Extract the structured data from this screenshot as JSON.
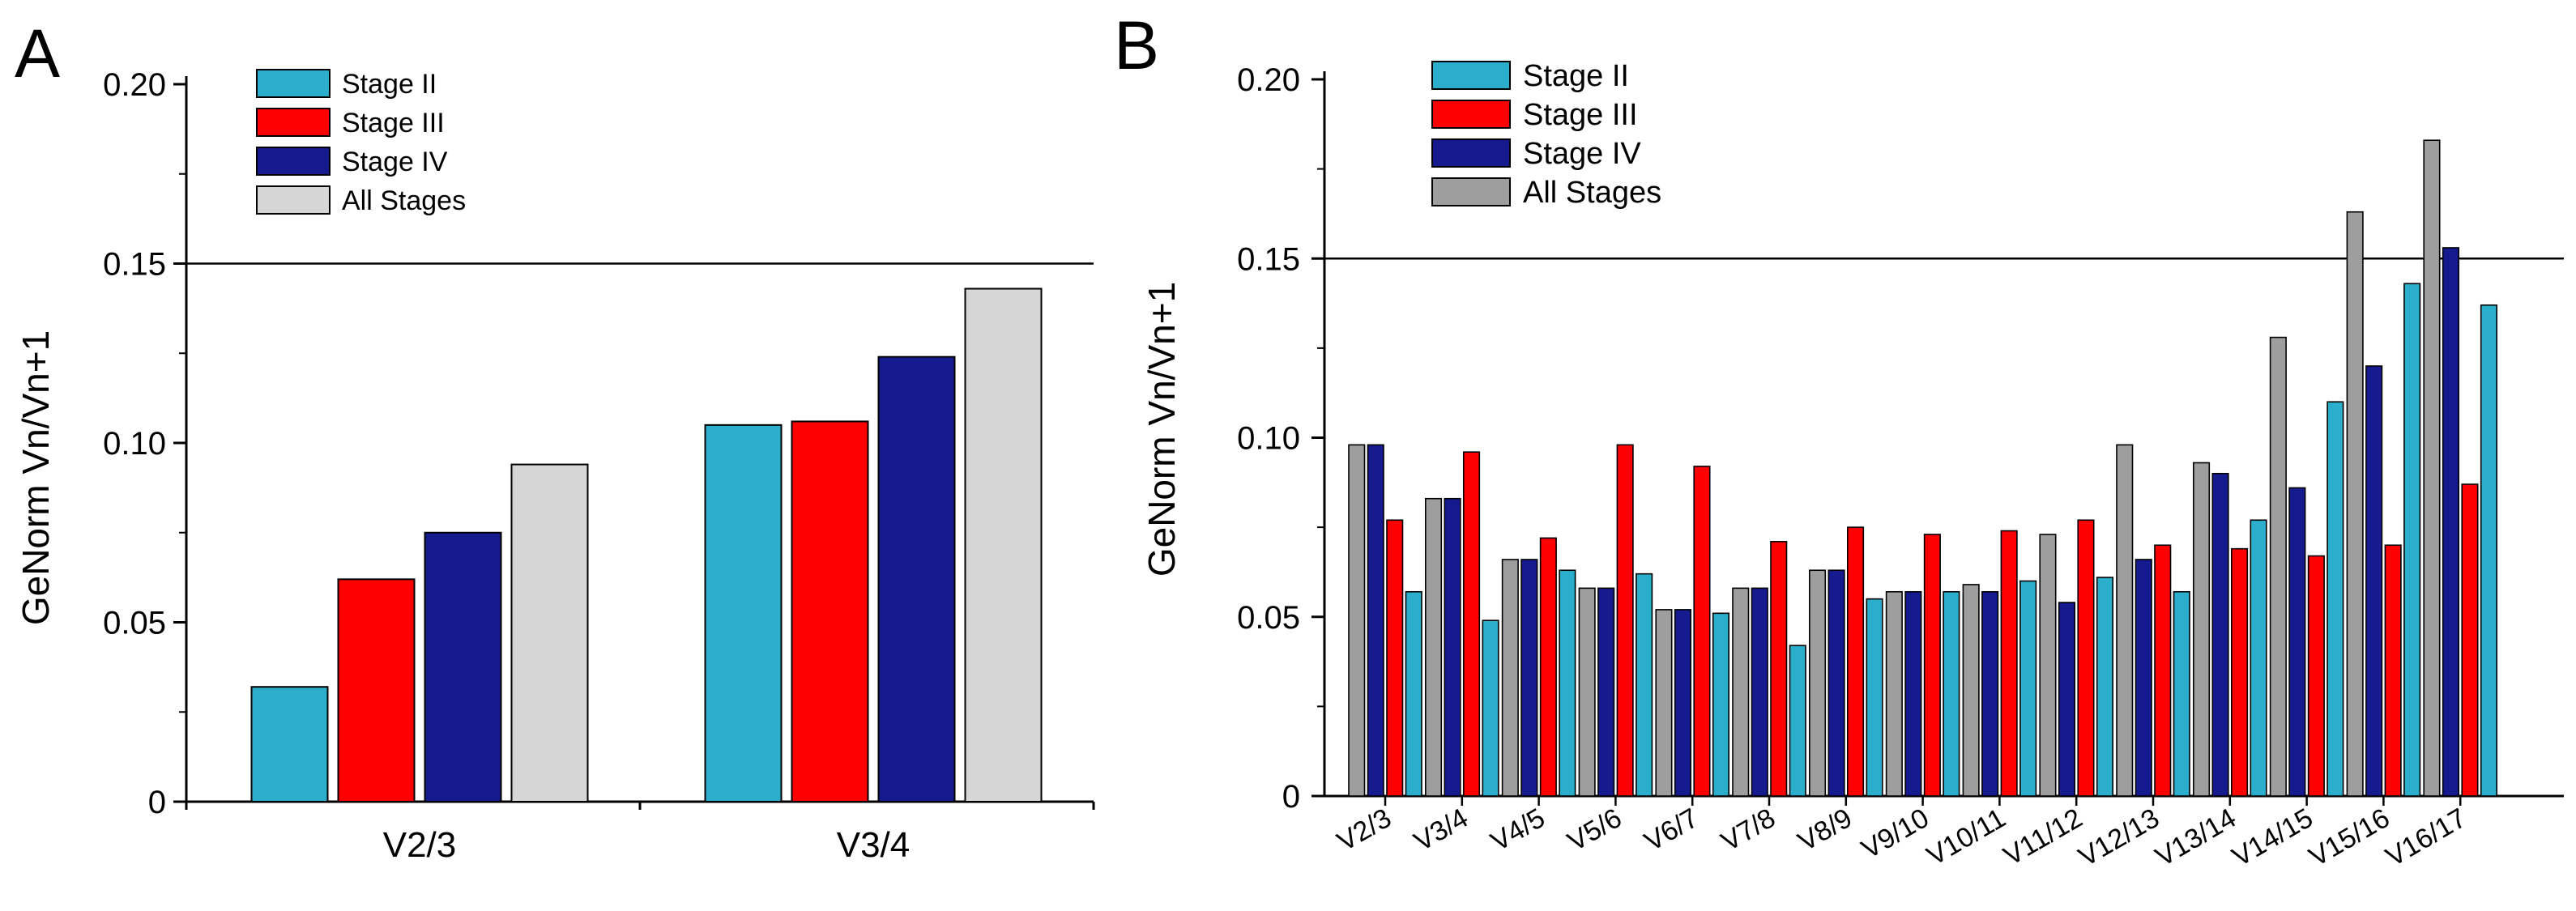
{
  "colors": {
    "stage_ii": "#2aaecb",
    "stage_iii": "#fe0000",
    "stage_iv": "#151b8e",
    "all_stages_a": "#d6d6d6",
    "all_stages_b": "#9e9e9e"
  },
  "chart_data": [
    {
      "panel": "A",
      "type": "bar",
      "title": "",
      "xlabel": "",
      "ylabel": "GeNorm Vn/Vn+1",
      "ylim": [
        0,
        0.2
      ],
      "yticks": [
        "0",
        "0.05",
        "0.10",
        "0.15",
        "0.20"
      ],
      "reference_line": 0.15,
      "legend": [
        "Stage II",
        "Stage III",
        "Stage IV",
        "All Stages"
      ],
      "categories": [
        "V2/3",
        "V3/4"
      ],
      "series": [
        {
          "name": "Stage II",
          "values": [
            0.032,
            0.105
          ]
        },
        {
          "name": "Stage III",
          "values": [
            0.062,
            0.106
          ]
        },
        {
          "name": "Stage IV",
          "values": [
            0.075,
            0.124
          ]
        },
        {
          "name": "All Stages",
          "values": [
            0.094,
            0.143
          ]
        }
      ]
    },
    {
      "panel": "B",
      "type": "bar",
      "title": "",
      "xlabel": "",
      "ylabel": "GeNorm Vn/Vn+1",
      "ylim": [
        0,
        0.2
      ],
      "yticks": [
        "0",
        "0.05",
        "0.10",
        "0.15",
        "0.20"
      ],
      "reference_line": 0.15,
      "legend": [
        "Stage II",
        "Stage III",
        "Stage IV",
        "All Stages"
      ],
      "categories": [
        "V2/3",
        "V3/4",
        "V4/5",
        "V5/6",
        "V6/7",
        "V7/8",
        "V8/9",
        "V9/10",
        "V10/11",
        "V11/12",
        "V12/13",
        "V13/14",
        "V14/15",
        "V15/16",
        "V16/17"
      ],
      "series": [
        {
          "name": "All Stages",
          "values": [
            0.098,
            0.083,
            0.066,
            0.058,
            0.052,
            0.058,
            0.063,
            0.057,
            0.059,
            0.073,
            0.098,
            0.093,
            0.128,
            0.163,
            0.183
          ]
        },
        {
          "name": "Stage IV",
          "values": [
            0.098,
            0.083,
            0.066,
            0.058,
            0.052,
            0.058,
            0.063,
            0.057,
            0.057,
            0.054,
            0.066,
            0.09,
            0.086,
            0.12,
            0.153
          ]
        },
        {
          "name": "Stage III",
          "values": [
            0.077,
            0.096,
            0.072,
            0.098,
            0.092,
            0.071,
            0.075,
            0.073,
            0.074,
            0.077,
            0.07,
            0.069,
            0.067,
            0.07,
            0.087
          ]
        },
        {
          "name": "Stage II",
          "values": [
            0.057,
            0.049,
            0.063,
            0.062,
            0.051,
            0.042,
            0.055,
            0.057,
            0.06,
            0.061,
            0.057,
            0.077,
            0.11,
            0.143,
            0.137
          ]
        }
      ]
    }
  ]
}
